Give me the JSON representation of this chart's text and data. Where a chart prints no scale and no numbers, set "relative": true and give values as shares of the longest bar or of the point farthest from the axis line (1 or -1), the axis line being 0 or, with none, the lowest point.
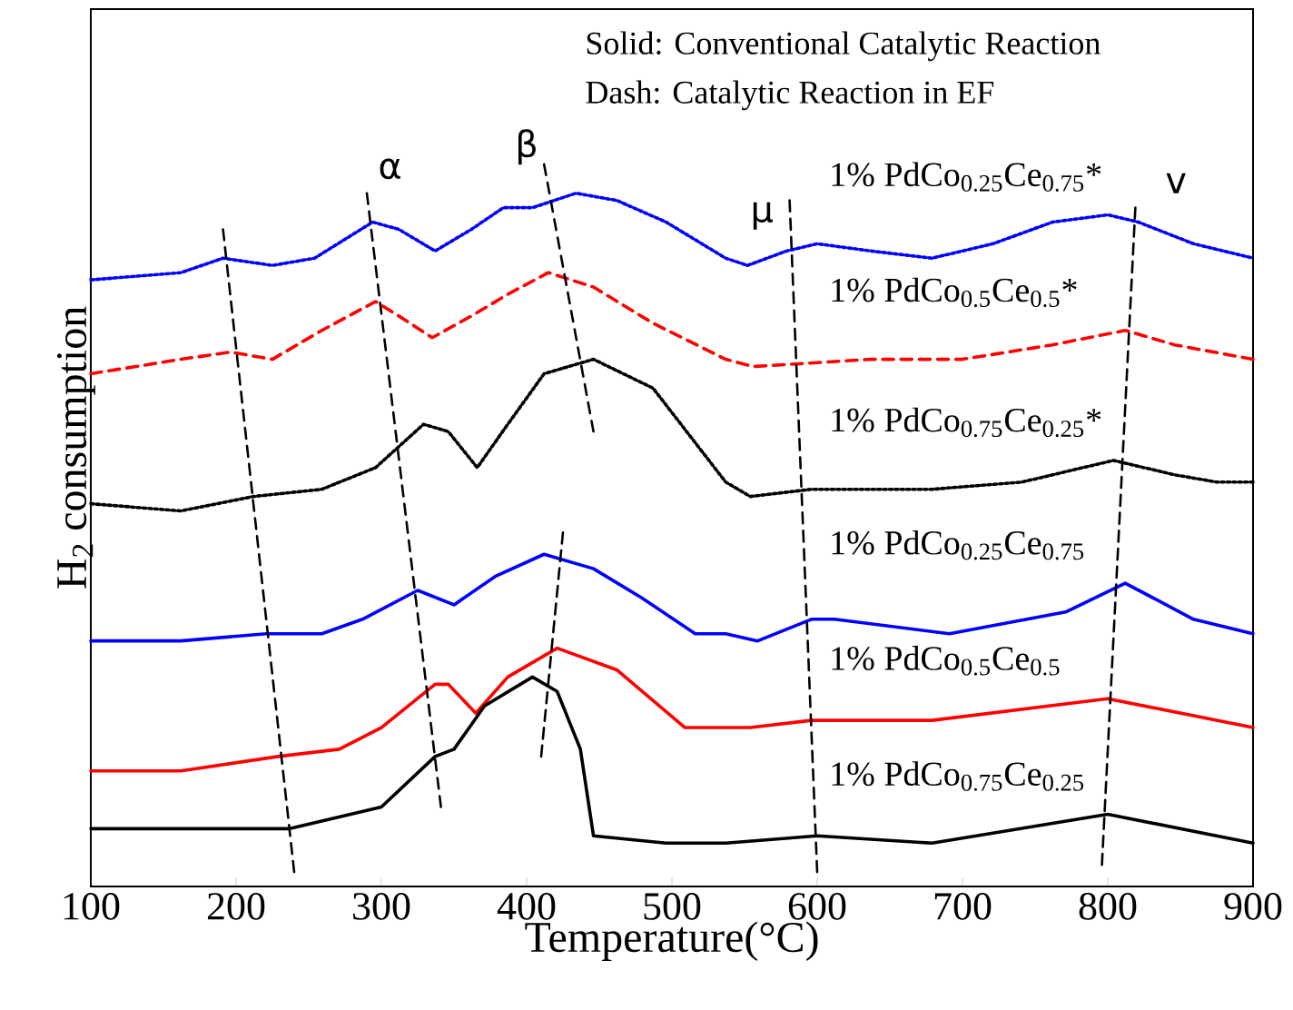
{
  "chart_data": {
    "type": "line",
    "relative": true,
    "xlabel": "Temperature(°C)",
    "ylabel": "H$_{2}$ consumption",
    "xlim": [
      100,
      900
    ],
    "xticks": [
      100,
      200,
      300,
      400,
      500,
      600,
      700,
      800,
      900
    ],
    "grid": false,
    "marker": "none",
    "annotations": [
      "Solid: Conventional Catalytic Reaction",
      "Dash: Catalytic Reaction in EF",
      "α",
      "β",
      "μ",
      "v"
    ],
    "series": [
      {
        "name": "1% PdCo$_{0.25}$Ce$_{0.75}$*",
        "color": "#0000ff",
        "line_style": "dotted",
        "x": [
          100,
          162,
          191,
          225,
          254,
          294,
          312,
          337,
          362,
          384,
          404,
          434,
          462,
          496,
          537,
          552,
          579,
          600,
          637,
          679,
          721,
          762,
          800,
          821,
          859,
          900
        ],
        "values": [
          0.84,
          0.85,
          0.87,
          0.86,
          0.87,
          0.92,
          0.91,
          0.88,
          0.91,
          0.94,
          0.94,
          0.96,
          0.95,
          0.92,
          0.87,
          0.86,
          0.88,
          0.89,
          0.88,
          0.87,
          0.89,
          0.92,
          0.93,
          0.92,
          0.89,
          0.87
        ]
      },
      {
        "name": "1% PdCo$_{0.5}$Ce$_{0.5}$*",
        "color": "#ff0000",
        "line_style": "dashed",
        "x": [
          100,
          162,
          196,
          225,
          259,
          296,
          312,
          335,
          362,
          387,
          415,
          446,
          487,
          537,
          556,
          637,
          700,
          762,
          812,
          846,
          900
        ],
        "values": [
          0.71,
          0.73,
          0.74,
          0.73,
          0.77,
          0.81,
          0.79,
          0.76,
          0.79,
          0.82,
          0.85,
          0.83,
          0.78,
          0.73,
          0.72,
          0.73,
          0.73,
          0.75,
          0.77,
          0.75,
          0.73
        ]
      },
      {
        "name": "1% PdCo$_{0.75}$Ce$_{0.25}$*",
        "color": "#000000",
        "line_style": "dotted",
        "x": [
          100,
          162,
          212,
          259,
          296,
          329,
          346,
          366,
          387,
          412,
          446,
          487,
          537,
          554,
          596,
          679,
          741,
          804,
          846,
          875,
          900
        ],
        "values": [
          0.53,
          0.52,
          0.54,
          0.55,
          0.58,
          0.64,
          0.63,
          0.58,
          0.64,
          0.71,
          0.73,
          0.69,
          0.56,
          0.54,
          0.55,
          0.55,
          0.56,
          0.59,
          0.57,
          0.56,
          0.56
        ]
      },
      {
        "name": "1% PdCo$_{0.25}$Ce$_{0.75}$",
        "color": "#0000ff",
        "line_style": "solid",
        "x": [
          100,
          162,
          221,
          259,
          287,
          325,
          350,
          379,
          412,
          446,
          479,
          516,
          537,
          559,
          596,
          612,
          691,
          771,
          812,
          859,
          900
        ],
        "values": [
          0.34,
          0.34,
          0.35,
          0.35,
          0.37,
          0.41,
          0.39,
          0.43,
          0.46,
          0.44,
          0.4,
          0.35,
          0.35,
          0.34,
          0.37,
          0.37,
          0.35,
          0.38,
          0.42,
          0.37,
          0.35
        ]
      },
      {
        "name": "1% PdCo$_{0.5}$Ce$_{0.5}$",
        "color": "#ff0000",
        "line_style": "solid",
        "x": [
          100,
          162,
          229,
          271,
          300,
          337,
          346,
          365,
          387,
          421,
          462,
          509,
          554,
          596,
          679,
          800,
          900
        ],
        "values": [
          0.16,
          0.16,
          0.18,
          0.19,
          0.22,
          0.28,
          0.28,
          0.24,
          0.29,
          0.33,
          0.3,
          0.22,
          0.22,
          0.23,
          0.23,
          0.26,
          0.22
        ]
      },
      {
        "name": "1% PdCo$_{0.75}$Ce$_{0.25}$",
        "color": "#000000",
        "line_style": "solid",
        "x": [
          100,
          162,
          237,
          300,
          337,
          350,
          371,
          404,
          421,
          437,
          446,
          496,
          537,
          600,
          679,
          800,
          900
        ],
        "values": [
          0.08,
          0.08,
          0.08,
          0.11,
          0.18,
          0.19,
          0.25,
          0.29,
          0.27,
          0.19,
          0.07,
          0.06,
          0.06,
          0.07,
          0.06,
          0.1,
          0.06
        ]
      },
      {
        "color": "#000000",
        "line_style": "dashed",
        "x": [
          191,
          240
        ],
        "values": [
          0.91,
          0.02
        ]
      },
      {
        "color": "#000000",
        "line_style": "dashed",
        "x": [
          290,
          341
        ],
        "values": [
          0.96,
          0.11
        ]
      },
      {
        "color": "#000000",
        "line_style": "dashed",
        "x": [
          412,
          446
        ],
        "values": [
          1.0,
          0.63
        ]
      },
      {
        "color": "#000000",
        "line_style": "dashed",
        "x": [
          425,
          410
        ],
        "values": [
          0.49,
          0.18
        ]
      },
      {
        "color": "#000000",
        "line_style": "dashed",
        "x": [
          581,
          600
        ],
        "values": [
          0.95,
          0.02
        ]
      },
      {
        "color": "#000000",
        "line_style": "dashed",
        "x": [
          819,
          796
        ],
        "values": [
          0.94,
          0.03
        ]
      }
    ]
  }
}
